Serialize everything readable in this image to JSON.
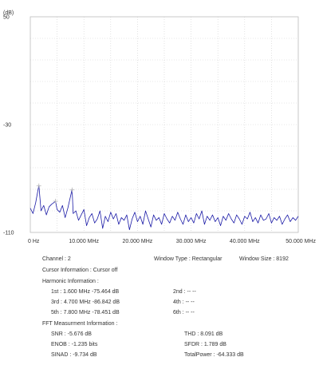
{
  "chart_data": {
    "type": "line",
    "title": "",
    "ylabel": "(dB)",
    "xlabel": "",
    "xlim": [
      0,
      50
    ],
    "ylim": [
      -110,
      50
    ],
    "x_unit": "MHz",
    "y_ticks": [
      {
        "value": 50,
        "label": "50"
      },
      {
        "value": -30,
        "label": "-30"
      },
      {
        "value": -110,
        "label": "-110"
      }
    ],
    "x_ticks": [
      {
        "value": 0,
        "label": "0 Hz"
      },
      {
        "value": 10,
        "label": "10.000 MHz"
      },
      {
        "value": 20,
        "label": "20.000 MHz"
      },
      {
        "value": 30,
        "label": "30.000 MHz"
      },
      {
        "value": 40,
        "label": "40.000 MHz"
      },
      {
        "value": 50,
        "label": "50.000 MHz"
      }
    ],
    "grid": true,
    "grid_divisions": {
      "x": 10,
      "y": 10
    },
    "line_color": "#1a1aa6",
    "marker_color": "#b8b8b8",
    "series": [
      {
        "x": [
          0.0,
          0.5,
          1.0,
          1.6,
          2.0,
          2.5,
          3.0,
          3.5,
          4.0,
          4.7,
          5.0,
          5.5,
          6.0,
          6.5,
          7.0,
          7.8,
          8.0,
          8.5,
          9.0,
          9.5,
          10.0,
          10.5,
          11.0,
          11.5,
          12.0,
          12.5,
          13.0,
          13.5,
          14.0,
          14.5,
          15.0,
          15.5,
          16.0,
          16.5,
          17.0,
          17.5,
          18.0,
          18.5,
          19.0,
          19.5,
          20.0,
          20.5,
          21.0,
          21.5,
          22.0,
          22.5,
          23.0,
          23.5,
          24.0,
          24.5,
          25.0,
          25.5,
          26.0,
          26.5,
          27.0,
          27.5,
          28.0,
          28.5,
          29.0,
          29.5,
          30.0,
          30.5,
          31.0,
          31.5,
          32.0,
          32.5,
          33.0,
          33.5,
          34.0,
          34.5,
          35.0,
          35.5,
          36.0,
          36.5,
          37.0,
          37.5,
          38.0,
          38.5,
          39.0,
          39.5,
          40.0,
          40.5,
          41.0,
          41.5,
          42.0,
          42.5,
          43.0,
          43.5,
          44.0,
          44.5,
          45.0,
          45.5,
          46.0,
          46.5,
          47.0,
          47.5,
          48.0,
          48.5,
          49.0,
          49.5,
          50.0
        ],
        "y": [
          -92,
          -96,
          -88,
          -75,
          -94,
          -90,
          -97,
          -91,
          -89,
          -87,
          -93,
          -95,
          -90,
          -99,
          -92,
          -78,
          -96,
          -94,
          -101,
          -97,
          -93,
          -105,
          -99,
          -96,
          -103,
          -100,
          -94,
          -107,
          -98,
          -102,
          -95,
          -100,
          -96,
          -104,
          -99,
          -101,
          -97,
          -108,
          -100,
          -95,
          -102,
          -98,
          -104,
          -94,
          -100,
          -106,
          -97,
          -101,
          -99,
          -104,
          -96,
          -100,
          -103,
          -98,
          -101,
          -95,
          -100,
          -104,
          -97,
          -102,
          -99,
          -103,
          -96,
          -100,
          -94,
          -104,
          -98,
          -101,
          -97,
          -102,
          -99,
          -105,
          -98,
          -101,
          -96,
          -100,
          -103,
          -97,
          -100,
          -104,
          -98,
          -100,
          -95,
          -102,
          -99,
          -103,
          -97,
          -101,
          -100,
          -96,
          -103,
          -99,
          -101,
          -98,
          -104,
          -100,
          -97,
          -102,
          -99,
          -101,
          -98
        ]
      }
    ],
    "markers": [
      {
        "x": 1.6,
        "y": -75.464
      },
      {
        "x": 4.7,
        "y": -86.842
      },
      {
        "x": 7.8,
        "y": -78.451
      }
    ]
  },
  "info": {
    "channel": "Channel : 2",
    "window_type": "Window Type : Rectangular",
    "window_size": "Window Size : 8192",
    "cursor": "Cursor Information :  Cursor off",
    "harmonic_title": "Harmonic Information :",
    "h1": "1st : 1.600 MHz  -75.464 dB",
    "h2": "2nd : -- --",
    "h3": "3rd : 4.700 MHz  -86.842 dB",
    "h4": "4th : -- --",
    "h5": "5th : 7.800 MHz  -78.451 dB",
    "h6": "6th : -- --",
    "fft_title": "FFT Measurment Information :",
    "snr": "SNR : -5.676 dB",
    "thd": "THD : 8.091 dB",
    "enob": "ENOB : -1.235 bits",
    "sfdr": "SFDR : 1.789 dB",
    "sinad": "SINAD : -9.734 dB",
    "total_power": "TotalPower : -64.333 dB"
  }
}
